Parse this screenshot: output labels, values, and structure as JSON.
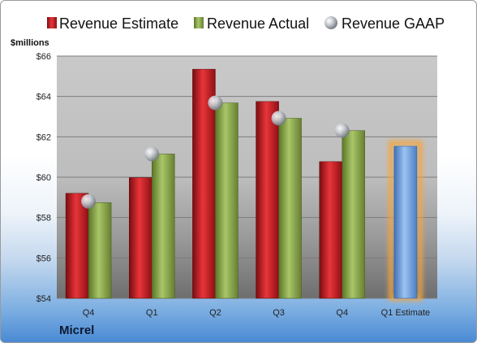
{
  "chart_data": {
    "type": "bar",
    "categories": [
      "Q4",
      "Q1",
      "Q2",
      "Q3",
      "Q4",
      "Q1 Estimate"
    ],
    "series": [
      {
        "name": "Revenue Estimate",
        "values": [
          59.2,
          59.98,
          65.35,
          63.75,
          60.77,
          null
        ],
        "color": "#c0181d"
      },
      {
        "name": "Revenue Actual",
        "values": [
          58.74,
          61.15,
          63.68,
          62.92,
          62.31,
          null
        ],
        "color": "#8aa84a"
      },
      {
        "name": "Revenue GAAP",
        "values": [
          58.8,
          61.15,
          63.68,
          62.92,
          62.31,
          null
        ],
        "color": "#b8bcc4",
        "marker": "sphere"
      },
      {
        "name": "Q1 Estimate",
        "values": [
          null,
          null,
          null,
          null,
          null,
          61.53
        ],
        "color": "#6a9ede",
        "highlight": "#f4a640"
      }
    ],
    "ylabel": "$millions",
    "ylim": [
      54,
      66
    ],
    "yticks": [
      "$54",
      "$56",
      "$58",
      "$60",
      "$62",
      "$64",
      "$66"
    ],
    "ytick_values": [
      54,
      56,
      58,
      60,
      62,
      64,
      66
    ],
    "grid": true,
    "legend_position": "top"
  },
  "company": "Micrel"
}
